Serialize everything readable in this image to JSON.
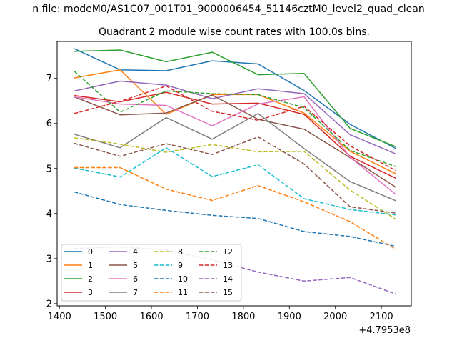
{
  "chart_data": {
    "type": "line",
    "suptitle": "n file: modeM0/AS1C07_001T01_9000006454_51146cztM0_level2_quad_clean",
    "title": "Quadrant 2 module wise count rates with 100.0s bins.",
    "xlabel": "",
    "ylabel": "",
    "x_offset_label": "+4.7953e8",
    "xlim": [
      1395,
      2165
    ],
    "ylim": [
      1.95,
      7.82
    ],
    "xticks": [
      1400,
      1500,
      1600,
      1700,
      1800,
      1900,
      2000,
      2100
    ],
    "yticks": [
      2,
      3,
      4,
      5,
      6,
      7
    ],
    "grid": false,
    "legend_placement": "lower-left",
    "x": [
      1432,
      1532,
      1632,
      1732,
      1832,
      1932,
      2032,
      2132
    ],
    "series": [
      {
        "name": "0",
        "color": "#1f77b4",
        "dash": "solid",
        "values": [
          7.66,
          7.19,
          7.17,
          7.39,
          7.32,
          6.73,
          5.98,
          5.44
        ]
      },
      {
        "name": "1",
        "color": "#ff7f0e",
        "dash": "solid",
        "values": [
          7.01,
          7.19,
          6.2,
          6.64,
          6.64,
          6.23,
          5.38,
          4.88
        ]
      },
      {
        "name": "2",
        "color": "#2ca02c",
        "dash": "solid",
        "values": [
          7.6,
          7.63,
          7.37,
          7.58,
          7.08,
          7.11,
          5.89,
          5.48
        ]
      },
      {
        "name": "3",
        "color": "#d62728",
        "dash": "solid",
        "values": [
          6.62,
          6.48,
          6.69,
          6.43,
          6.45,
          6.2,
          5.27,
          4.78
        ]
      },
      {
        "name": "4",
        "color": "#9467bd",
        "dash": "solid",
        "values": [
          6.72,
          6.94,
          6.85,
          6.55,
          6.77,
          6.66,
          5.75,
          5.32
        ]
      },
      {
        "name": "5",
        "color": "#8c564b",
        "dash": "solid",
        "values": [
          6.59,
          6.19,
          6.23,
          6.63,
          6.09,
          5.87,
          5.24,
          4.58
        ]
      },
      {
        "name": "6",
        "color": "#e377c2",
        "dash": "solid",
        "values": [
          6.59,
          6.43,
          6.4,
          5.95,
          6.43,
          6.59,
          5.25,
          4.42
        ]
      },
      {
        "name": "7",
        "color": "#7f7f7f",
        "dash": "solid",
        "values": [
          5.76,
          5.46,
          6.13,
          5.65,
          6.22,
          5.44,
          4.71,
          4.28
        ]
      },
      {
        "name": "8",
        "color": "#bcbd22",
        "dash": "dashed",
        "values": [
          5.68,
          5.54,
          5.36,
          5.53,
          5.37,
          5.38,
          4.52,
          3.87
        ]
      },
      {
        "name": "9",
        "color": "#17becf",
        "dash": "dashed",
        "values": [
          5.01,
          4.81,
          5.46,
          4.82,
          5.08,
          4.33,
          4.09,
          3.97
        ]
      },
      {
        "name": "10",
        "color": "#1f77b4",
        "dash": "dashed",
        "values": [
          4.48,
          4.2,
          4.07,
          3.96,
          3.89,
          3.6,
          3.49,
          3.27
        ]
      },
      {
        "name": "11",
        "color": "#ff7f0e",
        "dash": "dashed",
        "values": [
          5.02,
          5.02,
          4.54,
          4.29,
          4.62,
          4.26,
          3.82,
          3.2
        ]
      },
      {
        "name": "12",
        "color": "#2ca02c",
        "dash": "dashed",
        "values": [
          7.16,
          6.25,
          6.72,
          6.66,
          6.64,
          6.35,
          5.4,
          5.04
        ]
      },
      {
        "name": "13",
        "color": "#d62728",
        "dash": "dashed",
        "values": [
          6.22,
          6.49,
          6.83,
          6.27,
          6.07,
          6.38,
          5.5,
          4.95
        ]
      },
      {
        "name": "14",
        "color": "#9467bd",
        "dash": "dashed",
        "values": [
          3.22,
          3.26,
          3.19,
          2.97,
          2.7,
          2.5,
          2.58,
          2.21
        ]
      },
      {
        "name": "15",
        "color": "#8c564b",
        "dash": "dashed",
        "values": [
          5.56,
          5.27,
          5.55,
          5.31,
          5.7,
          5.1,
          4.15,
          4.01
        ]
      }
    ]
  }
}
